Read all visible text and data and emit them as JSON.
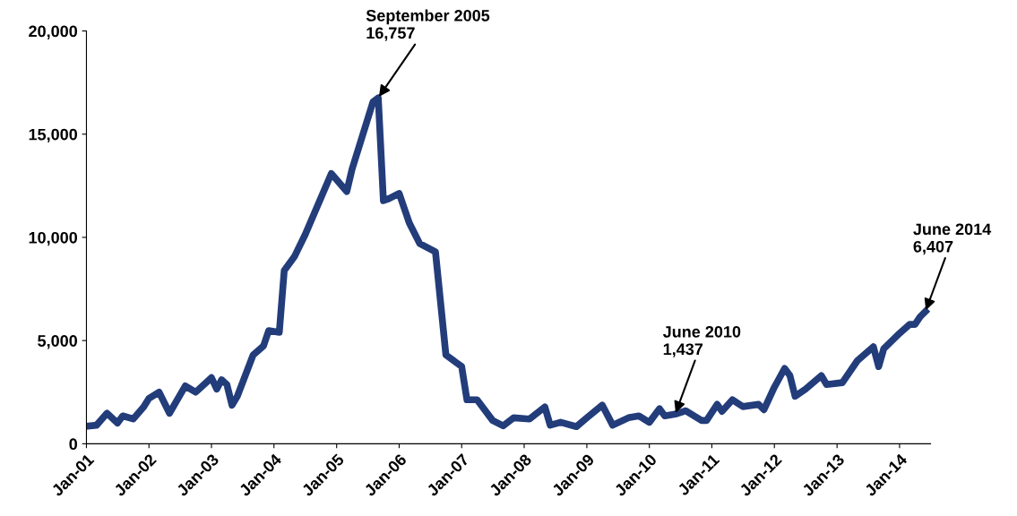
{
  "chart_data": {
    "type": "line",
    "x": [
      "2001-01",
      "2001-03",
      "2001-05",
      "2001-07",
      "2001-08",
      "2001-10",
      "2001-12",
      "2002-01",
      "2002-03",
      "2002-05",
      "2002-08",
      "2002-10",
      "2003-01",
      "2003-02",
      "2003-03",
      "2003-04",
      "2003-05",
      "2003-06",
      "2003-09",
      "2003-11",
      "2003-12",
      "2004-02",
      "2004-03",
      "2004-05",
      "2004-07",
      "2004-12",
      "2005-03",
      "2005-04",
      "2005-08",
      "2005-09",
      "2005-10",
      "2005-11",
      "2006-01",
      "2006-03",
      "2006-05",
      "2006-08",
      "2006-10",
      "2007-01",
      "2007-02",
      "2007-04",
      "2007-07",
      "2007-09",
      "2007-11",
      "2008-02",
      "2008-05",
      "2008-06",
      "2008-08",
      "2008-11",
      "2009-01",
      "2009-04",
      "2009-06",
      "2009-09",
      "2009-11",
      "2010-01",
      "2010-03",
      "2010-04",
      "2010-06",
      "2010-08",
      "2010-11",
      "2010-12",
      "2011-02",
      "2011-03",
      "2011-05",
      "2011-07",
      "2011-10",
      "2011-11",
      "2012-01",
      "2012-03",
      "2012-04",
      "2012-05",
      "2012-07",
      "2012-10",
      "2012-11",
      "2013-02",
      "2013-05",
      "2013-08",
      "2013-09",
      "2013-10",
      "2014-01",
      "2014-03",
      "2014-04",
      "2014-05",
      "2014-06"
    ],
    "series": [
      {
        "color": "#233d7b",
        "values": [
          850,
          900,
          1480,
          1000,
          1350,
          1200,
          1780,
          2200,
          2500,
          1480,
          2800,
          2500,
          3200,
          2650,
          3100,
          2870,
          1870,
          2300,
          4300,
          4740,
          5480,
          5400,
          8390,
          9090,
          10130,
          13090,
          12220,
          13300,
          16560,
          16757,
          11780,
          11870,
          12130,
          10700,
          9700,
          9300,
          4300,
          3740,
          2130,
          2130,
          1130,
          870,
          1260,
          1200,
          1780,
          900,
          1040,
          830,
          1260,
          1870,
          900,
          1260,
          1350,
          1040,
          1700,
          1350,
          1437,
          1600,
          1130,
          1130,
          1910,
          1570,
          2130,
          1800,
          1910,
          1650,
          2740,
          3650,
          3300,
          2300,
          2650,
          3300,
          2870,
          2960,
          4040,
          4700,
          3740,
          4610,
          5350,
          5780,
          5780,
          6150,
          6407
        ]
      }
    ],
    "xlim": [
      "2001-01",
      "2014-07"
    ],
    "xticks": [
      {
        "value": "2001-01",
        "label": "Jan-01"
      },
      {
        "value": "2002-01",
        "label": "Jan-02"
      },
      {
        "value": "2003-01",
        "label": "Jan-03"
      },
      {
        "value": "2004-01",
        "label": "Jan-04"
      },
      {
        "value": "2005-01",
        "label": "Jan-05"
      },
      {
        "value": "2006-01",
        "label": "Jan-06"
      },
      {
        "value": "2007-01",
        "label": "Jan-07"
      },
      {
        "value": "2008-01",
        "label": "Jan-08"
      },
      {
        "value": "2009-01",
        "label": "Jan-09"
      },
      {
        "value": "2010-01",
        "label": "Jan-10"
      },
      {
        "value": "2011-01",
        "label": "Jan-11"
      },
      {
        "value": "2012-01",
        "label": "Jan-12"
      },
      {
        "value": "2013-01",
        "label": "Jan-13"
      },
      {
        "value": "2014-01",
        "label": "Jan-14"
      }
    ],
    "ylim": [
      0,
      20000
    ],
    "yticks": [
      {
        "value": 0,
        "label": "0"
      },
      {
        "value": 5000,
        "label": "5,000"
      },
      {
        "value": 10000,
        "label": "10,000"
      },
      {
        "value": 15000,
        "label": "15,000"
      },
      {
        "value": 20000,
        "label": "20,000"
      }
    ],
    "grid": false,
    "legend": false,
    "marker": "none",
    "line_style": "solid",
    "annotations": [
      {
        "text": "September 2005\n16,757",
        "x": "2005-09",
        "y": 16757
      },
      {
        "text": "June 2010\n1,437",
        "x": "2010-06",
        "y": 1437
      },
      {
        "text": "June 2014\n6,407",
        "x": "2014-06",
        "y": 6407
      }
    ]
  }
}
